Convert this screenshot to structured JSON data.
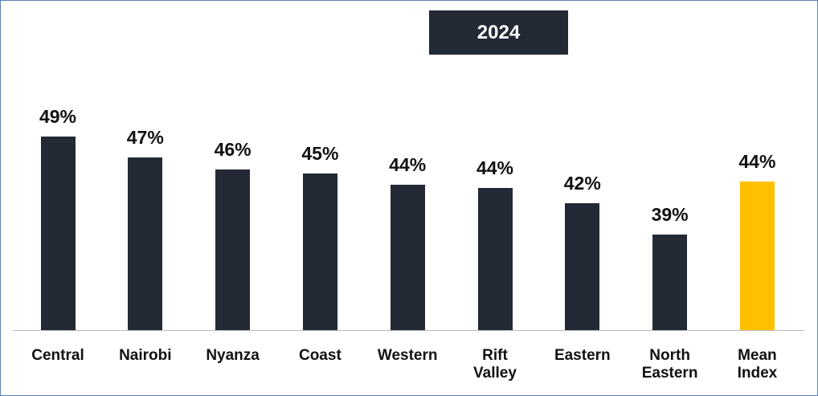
{
  "chart_data": {
    "type": "bar",
    "title": "2024",
    "categories": [
      "Central",
      "Nairobi",
      "Nyanza",
      "Coast",
      "Western",
      "Rift Valley",
      "Eastern",
      "North Eastern",
      "Mean Index"
    ],
    "values": [
      49.0,
      46.8,
      45.6,
      45.1,
      44.0,
      43.6,
      42.0,
      38.8,
      44.3
    ],
    "value_labels": [
      "49%",
      "47%",
      "46%",
      "45%",
      "44%",
      "44%",
      "42%",
      "39%",
      "44%"
    ],
    "colors": [
      "#232a36",
      "#232a36",
      "#232a36",
      "#232a36",
      "#232a36",
      "#232a36",
      "#232a36",
      "#232a36",
      "#ffc000"
    ],
    "ylim": [
      28.8,
      50
    ]
  }
}
